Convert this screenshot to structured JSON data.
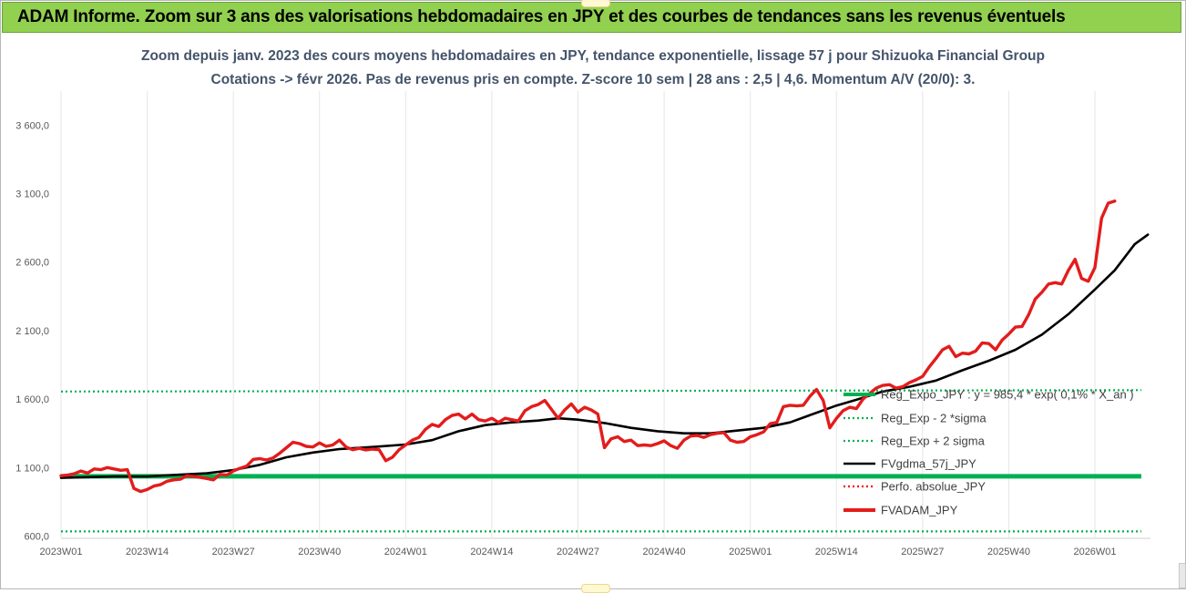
{
  "banner": {
    "title": "ADAM Informe. Zoom sur 3 ans des valorisations hebdomadaires en JPY et des courbes de tendances sans les revenus éventuels",
    "color": "#92d050"
  },
  "chart_data": {
    "type": "line",
    "title_line1": "Zoom depuis janv. 2023 des cours moyens hebdomadaires en JPY, tendance exponentielle, lissage 57 j pour Shizuoka Financial Group",
    "title_line2": "Cotations -> févr 2026.  Pas de revenus pris en compte. Z-score 10 sem | 28 ans : 2,5 | 4,6. Momentum A/V (20/0): 3.",
    "ylim": [
      600,
      3900
    ],
    "yticks": [
      "600,0",
      "1 100,0",
      "1 600,0",
      "2 100,0",
      "2 600,0",
      "3 100,0",
      "3 600,0"
    ],
    "ytick_values": [
      600,
      1100,
      1600,
      2100,
      2600,
      3100,
      3600
    ],
    "xticks": [
      "2023W01",
      "2023W14",
      "2023W27",
      "2023W40",
      "2024W01",
      "2024W14",
      "2024W27",
      "2024W40",
      "2025W01",
      "2025W14",
      "2025W27",
      "2025W40",
      "2026W01"
    ],
    "xtick_weeks": [
      0,
      13,
      26,
      39,
      52,
      65,
      78,
      91,
      104,
      117,
      130,
      143,
      156
    ],
    "n_weeks": 163,
    "grid": "vertical",
    "legend_position": "right",
    "series": [
      {
        "name": "Reg_Expo_JPY : y = 985,4 * exp( 0,1% * X_an )",
        "style": "solid-thick",
        "color": "#00b050",
        "values": [
          1036,
          1036
        ]
      },
      {
        "name": "Reg_Exp - 2 *sigma",
        "style": "dotted",
        "color": "#00b050",
        "values": [
          634,
          634
        ]
      },
      {
        "name": "Reg_Exp + 2 sigma",
        "style": "dotted",
        "color": "#00b050",
        "values": [
          1655,
          1665
        ]
      },
      {
        "name": "FVgdma_57j_JPY",
        "style": "solid",
        "color": "#000000",
        "points": [
          [
            0,
            1025
          ],
          [
            4,
            1030
          ],
          [
            8,
            1035
          ],
          [
            13,
            1035
          ],
          [
            18,
            1048
          ],
          [
            22,
            1058
          ],
          [
            26,
            1082
          ],
          [
            30,
            1120
          ],
          [
            34,
            1175
          ],
          [
            38,
            1210
          ],
          [
            42,
            1235
          ],
          [
            47,
            1250
          ],
          [
            52,
            1268
          ],
          [
            56,
            1300
          ],
          [
            60,
            1365
          ],
          [
            64,
            1410
          ],
          [
            68,
            1430
          ],
          [
            72,
            1443
          ],
          [
            75,
            1460
          ],
          [
            78,
            1450
          ],
          [
            82,
            1425
          ],
          [
            86,
            1390
          ],
          [
            90,
            1365
          ],
          [
            94,
            1350
          ],
          [
            98,
            1350
          ],
          [
            102,
            1370
          ],
          [
            106,
            1390
          ],
          [
            110,
            1430
          ],
          [
            114,
            1500
          ],
          [
            117,
            1553
          ],
          [
            120,
            1595
          ],
          [
            124,
            1655
          ],
          [
            128,
            1690
          ],
          [
            132,
            1735
          ],
          [
            136,
            1810
          ],
          [
            140,
            1880
          ],
          [
            144,
            1960
          ],
          [
            148,
            2070
          ],
          [
            152,
            2220
          ],
          [
            156,
            2400
          ],
          [
            159,
            2540
          ],
          [
            162,
            2730
          ],
          [
            164,
            2800
          ]
        ]
      },
      {
        "name": "Perfo. absolue_JPY",
        "style": "dotted",
        "color": "#ff0000",
        "values": []
      },
      {
        "name": "FVADAM_JPY",
        "style": "solid-thick",
        "color": "#e31c1c",
        "points": [
          [
            0,
            1040
          ],
          [
            1,
            1045
          ],
          [
            2,
            1055
          ],
          [
            3,
            1075
          ],
          [
            4,
            1060
          ],
          [
            5,
            1090
          ],
          [
            6,
            1085
          ],
          [
            7,
            1100
          ],
          [
            8,
            1090
          ],
          [
            9,
            1080
          ],
          [
            10,
            1085
          ],
          [
            11,
            948
          ],
          [
            12,
            925
          ],
          [
            13,
            940
          ],
          [
            14,
            965
          ],
          [
            15,
            975
          ],
          [
            16,
            1000
          ],
          [
            17,
            1010
          ],
          [
            18,
            1015
          ],
          [
            19,
            1040
          ],
          [
            20,
            1035
          ],
          [
            21,
            1028
          ],
          [
            22,
            1020
          ],
          [
            23,
            1010
          ],
          [
            24,
            1050
          ],
          [
            25,
            1045
          ],
          [
            26,
            1075
          ],
          [
            27,
            1095
          ],
          [
            28,
            1110
          ],
          [
            29,
            1160
          ],
          [
            30,
            1165
          ],
          [
            31,
            1155
          ],
          [
            32,
            1170
          ],
          [
            33,
            1205
          ],
          [
            34,
            1245
          ],
          [
            35,
            1285
          ],
          [
            36,
            1275
          ],
          [
            37,
            1255
          ],
          [
            38,
            1250
          ],
          [
            39,
            1280
          ],
          [
            40,
            1255
          ],
          [
            41,
            1265
          ],
          [
            42,
            1300
          ],
          [
            43,
            1250
          ],
          [
            44,
            1230
          ],
          [
            45,
            1240
          ],
          [
            46,
            1228
          ],
          [
            47,
            1235
          ],
          [
            48,
            1230
          ],
          [
            49,
            1150
          ],
          [
            50,
            1175
          ],
          [
            51,
            1230
          ],
          [
            52,
            1265
          ],
          [
            53,
            1300
          ],
          [
            54,
            1320
          ],
          [
            55,
            1380
          ],
          [
            56,
            1415
          ],
          [
            57,
            1400
          ],
          [
            58,
            1450
          ],
          [
            59,
            1480
          ],
          [
            60,
            1490
          ],
          [
            61,
            1455
          ],
          [
            62,
            1490
          ],
          [
            63,
            1450
          ],
          [
            64,
            1440
          ],
          [
            65,
            1460
          ],
          [
            66,
            1430
          ],
          [
            67,
            1460
          ],
          [
            68,
            1450
          ],
          [
            69,
            1440
          ],
          [
            70,
            1515
          ],
          [
            71,
            1545
          ],
          [
            72,
            1560
          ],
          [
            73,
            1590
          ],
          [
            74,
            1525
          ],
          [
            75,
            1460
          ],
          [
            76,
            1520
          ],
          [
            77,
            1565
          ],
          [
            78,
            1505
          ],
          [
            79,
            1540
          ],
          [
            80,
            1520
          ],
          [
            81,
            1490
          ],
          [
            82,
            1245
          ],
          [
            83,
            1310
          ],
          [
            84,
            1325
          ],
          [
            85,
            1290
          ],
          [
            86,
            1300
          ],
          [
            87,
            1260
          ],
          [
            88,
            1265
          ],
          [
            89,
            1260
          ],
          [
            90,
            1275
          ],
          [
            91,
            1295
          ],
          [
            92,
            1260
          ],
          [
            93,
            1240
          ],
          [
            94,
            1300
          ],
          [
            95,
            1330
          ],
          [
            96,
            1335
          ],
          [
            97,
            1320
          ],
          [
            98,
            1340
          ],
          [
            99,
            1350
          ],
          [
            100,
            1355
          ],
          [
            101,
            1300
          ],
          [
            102,
            1285
          ],
          [
            103,
            1290
          ],
          [
            104,
            1325
          ],
          [
            105,
            1340
          ],
          [
            106,
            1360
          ],
          [
            107,
            1420
          ],
          [
            108,
            1430
          ],
          [
            109,
            1545
          ],
          [
            110,
            1555
          ],
          [
            111,
            1550
          ],
          [
            112,
            1555
          ],
          [
            113,
            1620
          ],
          [
            114,
            1670
          ],
          [
            115,
            1590
          ],
          [
            116,
            1390
          ],
          [
            117,
            1460
          ],
          [
            118,
            1515
          ],
          [
            119,
            1540
          ],
          [
            120,
            1530
          ],
          [
            121,
            1600
          ],
          [
            122,
            1640
          ],
          [
            123,
            1680
          ],
          [
            124,
            1700
          ],
          [
            125,
            1705
          ],
          [
            126,
            1680
          ],
          [
            127,
            1690
          ],
          [
            128,
            1720
          ],
          [
            129,
            1740
          ],
          [
            130,
            1765
          ],
          [
            131,
            1835
          ],
          [
            132,
            1895
          ],
          [
            133,
            1960
          ],
          [
            134,
            1985
          ],
          [
            135,
            1910
          ],
          [
            136,
            1935
          ],
          [
            137,
            1930
          ],
          [
            138,
            1950
          ],
          [
            139,
            2010
          ],
          [
            140,
            2005
          ],
          [
            141,
            1960
          ],
          [
            142,
            2030
          ],
          [
            143,
            2075
          ],
          [
            144,
            2125
          ],
          [
            145,
            2130
          ],
          [
            146,
            2215
          ],
          [
            147,
            2330
          ],
          [
            148,
            2380
          ],
          [
            149,
            2440
          ],
          [
            150,
            2450
          ],
          [
            151,
            2440
          ],
          [
            152,
            2540
          ],
          [
            153,
            2620
          ],
          [
            154,
            2480
          ],
          [
            155,
            2460
          ],
          [
            156,
            2560
          ],
          [
            157,
            2920
          ],
          [
            158,
            3030
          ],
          [
            159,
            3045
          ]
        ]
      }
    ]
  }
}
